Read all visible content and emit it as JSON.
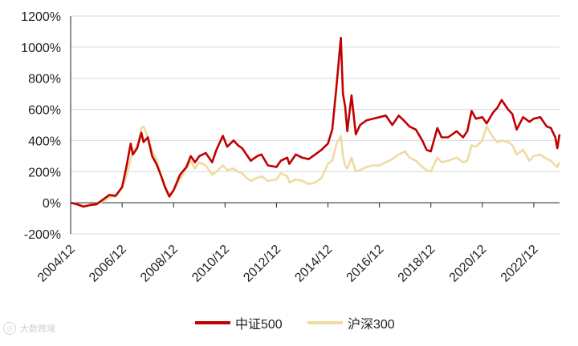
{
  "chart_data": {
    "type": "line",
    "xlabel": "",
    "ylabel": "",
    "ylim": [
      -200,
      1200
    ],
    "y_ticks": [
      "-200%",
      "0%",
      "200%",
      "400%",
      "600%",
      "800%",
      "1000%",
      "1200%"
    ],
    "y_tick_values": [
      -200,
      0,
      200,
      400,
      600,
      800,
      1000,
      1200
    ],
    "x_range": [
      "2004-12",
      "2023-12"
    ],
    "x_ticks": [
      "2004/12",
      "2006/12",
      "2008/12",
      "2010/12",
      "2012/12",
      "2014/12",
      "2016/12",
      "2018/12",
      "2020/12",
      "2022/12"
    ],
    "x_tick_dates": [
      "2004-12",
      "2006-12",
      "2008-12",
      "2010-12",
      "2012-12",
      "2014-12",
      "2016-12",
      "2018-12",
      "2020-12",
      "2022-12"
    ],
    "grid": "horizontal",
    "legend_position": "bottom",
    "series": [
      {
        "name": "中证500",
        "color": "#c00000",
        "points": [
          [
            "2004-12",
            0
          ],
          [
            "2005-03",
            -10
          ],
          [
            "2005-06",
            -25
          ],
          [
            "2005-09",
            -15
          ],
          [
            "2005-12",
            -10
          ],
          [
            "2006-03",
            20
          ],
          [
            "2006-06",
            50
          ],
          [
            "2006-09",
            45
          ],
          [
            "2006-12",
            100
          ],
          [
            "2007-02",
            230
          ],
          [
            "2007-04",
            380
          ],
          [
            "2007-05",
            310
          ],
          [
            "2007-07",
            350
          ],
          [
            "2007-09",
            450
          ],
          [
            "2007-10",
            390
          ],
          [
            "2007-12",
            420
          ],
          [
            "2008-02",
            300
          ],
          [
            "2008-04",
            250
          ],
          [
            "2008-06",
            180
          ],
          [
            "2008-08",
            100
          ],
          [
            "2008-10",
            40
          ],
          [
            "2008-12",
            80
          ],
          [
            "2009-03",
            180
          ],
          [
            "2009-06",
            230
          ],
          [
            "2009-08",
            300
          ],
          [
            "2009-10",
            260
          ],
          [
            "2009-12",
            300
          ],
          [
            "2010-03",
            320
          ],
          [
            "2010-06",
            260
          ],
          [
            "2010-08",
            340
          ],
          [
            "2010-11",
            430
          ],
          [
            "2011-01",
            360
          ],
          [
            "2011-04",
            400
          ],
          [
            "2011-06",
            370
          ],
          [
            "2011-08",
            350
          ],
          [
            "2011-10",
            310
          ],
          [
            "2011-12",
            270
          ],
          [
            "2012-03",
            300
          ],
          [
            "2012-05",
            310
          ],
          [
            "2012-08",
            240
          ],
          [
            "2012-12",
            230
          ],
          [
            "2013-02",
            270
          ],
          [
            "2013-05",
            290
          ],
          [
            "2013-06",
            250
          ],
          [
            "2013-09",
            310
          ],
          [
            "2013-12",
            290
          ],
          [
            "2014-03",
            280
          ],
          [
            "2014-06",
            310
          ],
          [
            "2014-09",
            340
          ],
          [
            "2014-12",
            380
          ],
          [
            "2015-02",
            470
          ],
          [
            "2015-04",
            750
          ],
          [
            "2015-06",
            1060
          ],
          [
            "2015-07",
            700
          ],
          [
            "2015-08",
            620
          ],
          [
            "2015-09",
            460
          ],
          [
            "2015-11",
            690
          ],
          [
            "2016-01",
            440
          ],
          [
            "2016-03",
            500
          ],
          [
            "2016-06",
            530
          ],
          [
            "2016-09",
            540
          ],
          [
            "2016-12",
            550
          ],
          [
            "2017-03",
            560
          ],
          [
            "2017-06",
            500
          ],
          [
            "2017-09",
            560
          ],
          [
            "2017-12",
            520
          ],
          [
            "2018-02",
            490
          ],
          [
            "2018-05",
            470
          ],
          [
            "2018-08",
            400
          ],
          [
            "2018-10",
            340
          ],
          [
            "2018-12",
            330
          ],
          [
            "2019-03",
            480
          ],
          [
            "2019-05",
            420
          ],
          [
            "2019-08",
            420
          ],
          [
            "2019-12",
            460
          ],
          [
            "2020-03",
            420
          ],
          [
            "2020-05",
            460
          ],
          [
            "2020-07",
            590
          ],
          [
            "2020-09",
            540
          ],
          [
            "2020-12",
            550
          ],
          [
            "2021-02",
            510
          ],
          [
            "2021-05",
            580
          ],
          [
            "2021-07",
            610
          ],
          [
            "2021-09",
            660
          ],
          [
            "2021-12",
            600
          ],
          [
            "2022-02",
            570
          ],
          [
            "2022-04",
            470
          ],
          [
            "2022-07",
            550
          ],
          [
            "2022-10",
            520
          ],
          [
            "2022-12",
            540
          ],
          [
            "2023-03",
            550
          ],
          [
            "2023-06",
            490
          ],
          [
            "2023-08",
            480
          ],
          [
            "2023-10",
            420
          ],
          [
            "2023-11",
            350
          ],
          [
            "2023-12",
            440
          ]
        ]
      },
      {
        "name": "沪深300",
        "color": "#eedba2",
        "points": [
          [
            "2004-12",
            0
          ],
          [
            "2005-03",
            -8
          ],
          [
            "2005-06",
            -20
          ],
          [
            "2005-09",
            -12
          ],
          [
            "2005-12",
            -8
          ],
          [
            "2006-03",
            10
          ],
          [
            "2006-06",
            35
          ],
          [
            "2006-09",
            40
          ],
          [
            "2006-12",
            100
          ],
          [
            "2007-02",
            170
          ],
          [
            "2007-04",
            280
          ],
          [
            "2007-05",
            330
          ],
          [
            "2007-07",
            360
          ],
          [
            "2007-09",
            480
          ],
          [
            "2007-10",
            490
          ],
          [
            "2007-12",
            420
          ],
          [
            "2008-02",
            330
          ],
          [
            "2008-04",
            280
          ],
          [
            "2008-06",
            180
          ],
          [
            "2008-08",
            110
          ],
          [
            "2008-10",
            55
          ],
          [
            "2008-12",
            80
          ],
          [
            "2009-03",
            150
          ],
          [
            "2009-06",
            220
          ],
          [
            "2009-08",
            270
          ],
          [
            "2009-10",
            220
          ],
          [
            "2009-12",
            260
          ],
          [
            "2010-03",
            240
          ],
          [
            "2010-06",
            180
          ],
          [
            "2010-08",
            200
          ],
          [
            "2010-11",
            240
          ],
          [
            "2011-01",
            210
          ],
          [
            "2011-04",
            220
          ],
          [
            "2011-06",
            200
          ],
          [
            "2011-08",
            190
          ],
          [
            "2011-10",
            160
          ],
          [
            "2011-12",
            140
          ],
          [
            "2012-03",
            160
          ],
          [
            "2012-05",
            170
          ],
          [
            "2012-08",
            140
          ],
          [
            "2012-12",
            150
          ],
          [
            "2013-02",
            190
          ],
          [
            "2013-05",
            170
          ],
          [
            "2013-06",
            130
          ],
          [
            "2013-09",
            150
          ],
          [
            "2013-12",
            140
          ],
          [
            "2014-03",
            120
          ],
          [
            "2014-06",
            130
          ],
          [
            "2014-09",
            160
          ],
          [
            "2014-12",
            250
          ],
          [
            "2015-02",
            270
          ],
          [
            "2015-04",
            380
          ],
          [
            "2015-06",
            430
          ],
          [
            "2015-07",
            300
          ],
          [
            "2015-08",
            240
          ],
          [
            "2015-09",
            220
          ],
          [
            "2015-11",
            290
          ],
          [
            "2016-01",
            200
          ],
          [
            "2016-03",
            210
          ],
          [
            "2016-06",
            230
          ],
          [
            "2016-09",
            240
          ],
          [
            "2016-12",
            240
          ],
          [
            "2017-03",
            260
          ],
          [
            "2017-06",
            280
          ],
          [
            "2017-09",
            310
          ],
          [
            "2017-12",
            330
          ],
          [
            "2018-02",
            290
          ],
          [
            "2018-05",
            270
          ],
          [
            "2018-08",
            230
          ],
          [
            "2018-10",
            210
          ],
          [
            "2018-12",
            200
          ],
          [
            "2019-03",
            290
          ],
          [
            "2019-05",
            260
          ],
          [
            "2019-08",
            270
          ],
          [
            "2019-12",
            290
          ],
          [
            "2020-03",
            260
          ],
          [
            "2020-05",
            270
          ],
          [
            "2020-07",
            370
          ],
          [
            "2020-09",
            360
          ],
          [
            "2020-12",
            400
          ],
          [
            "2021-02",
            490
          ],
          [
            "2021-05",
            420
          ],
          [
            "2021-07",
            390
          ],
          [
            "2021-09",
            400
          ],
          [
            "2021-12",
            390
          ],
          [
            "2022-02",
            370
          ],
          [
            "2022-04",
            310
          ],
          [
            "2022-07",
            340
          ],
          [
            "2022-10",
            270
          ],
          [
            "2022-12",
            300
          ],
          [
            "2023-03",
            310
          ],
          [
            "2023-06",
            280
          ],
          [
            "2023-08",
            270
          ],
          [
            "2023-10",
            240
          ],
          [
            "2023-11",
            230
          ],
          [
            "2023-12",
            260
          ]
        ]
      }
    ]
  },
  "watermark": {
    "text": "大数跨境"
  }
}
